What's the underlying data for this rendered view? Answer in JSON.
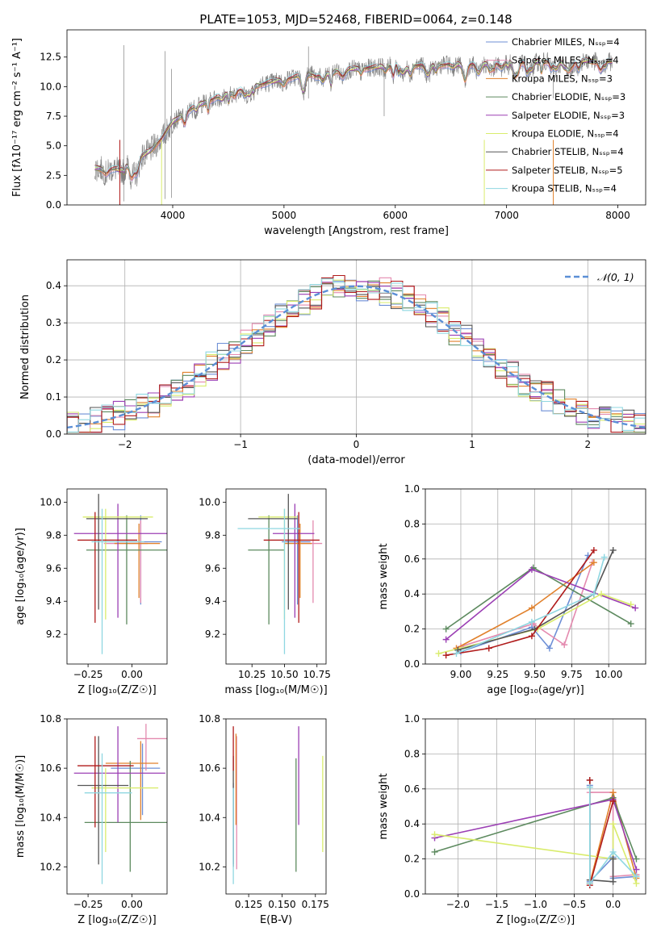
{
  "title": "PLATE=1053, MJD=52468, FIBERID=0064, z=0.148",
  "colors": {
    "Chabrier MILES": "#6d8fd6",
    "Salpeter MILES": "#e48aaf",
    "Kroupa MILES": "#e1812c",
    "Chabrier ELODIE": "#5d8a5f",
    "Salpeter ELODIE": "#9b3fb4",
    "Kroupa ELODIE": "#d9ec6c",
    "Chabrier STELIB": "#555555",
    "Salpeter STELIB": "#b01b1b",
    "Kroupa STELIB": "#8fd7e1",
    "data": "#808080",
    "normal": "#5b8fd6"
  },
  "chart_data": [
    {
      "id": "spectrum",
      "type": "line",
      "xlabel": "wavelength [Angstrom, rest frame]",
      "ylabel": "Flux [fλ10⁻¹⁷ erg cm⁻² s⁻¹ A⁻¹]",
      "xlim": [
        3050,
        8250
      ],
      "ylim": [
        0,
        14.8
      ],
      "xticks": [
        4000,
        5000,
        6000,
        7000,
        8000
      ],
      "yticks": [
        0.0,
        2.5,
        5.0,
        7.5,
        10.0,
        12.5
      ],
      "legend": "top-right",
      "legend_entries": [
        "Chabrier MILES, Nₛₛₚ=4",
        "Salpeter MILES, Nₛₛₚ=4",
        "Kroupa MILES, Nₛₛₚ=3",
        "Chabrier ELODIE, Nₛₛₚ=3",
        "Salpeter ELODIE, Nₛₛₚ=3",
        "Kroupa ELODIE, Nₛₛₚ=4",
        "Chabrier STELIB, Nₛₛₚ=4",
        "Salpeter STELIB, Nₛₛₚ=5",
        "Kroupa STELIB, Nₛₛₚ=4"
      ],
      "continuum": {
        "x": [
          3300,
          3500,
          3650,
          3800,
          3900,
          4000,
          4200,
          4400,
          4600,
          4800,
          5000,
          5200,
          5500,
          5800,
          6000,
          6300,
          6600,
          6800,
          7000,
          7300,
          7600,
          7900
        ],
        "y": [
          3.1,
          3.0,
          3.6,
          4.6,
          5.6,
          7.0,
          8.3,
          9.1,
          9.7,
          10.2,
          10.6,
          11.0,
          11.4,
          11.6,
          11.8,
          11.8,
          11.9,
          11.9,
          12.0,
          12.1,
          12.2,
          12.1
        ]
      }
    },
    {
      "id": "residuals",
      "type": "histogram",
      "xlabel": "(data-model)/error",
      "ylabel": "Normed distribution",
      "xlim": [
        -2.5,
        2.5
      ],
      "ylim": [
        0,
        0.47
      ],
      "xticks": [
        -2,
        -1,
        0,
        1,
        2
      ],
      "yticks": [
        0.0,
        0.1,
        0.2,
        0.3,
        0.4
      ],
      "legend": "top-right",
      "legend_label": "𝒩(0, 1)",
      "bin_width": 0.1
    },
    {
      "id": "age-vs-Z",
      "type": "scatter",
      "xlabel": "Z [log₁₀(Z/Z☉)]",
      "ylabel": "age  [log₁₀(age/yr)]",
      "xlim": [
        -0.37,
        0.2
      ],
      "ylim": [
        9.02,
        10.08
      ],
      "xticks": [
        -0.25,
        0.0
      ],
      "xticklabels": [
        "−0.25",
        "0.00"
      ],
      "yticks": [
        9.2,
        9.4,
        9.6,
        9.8,
        10.0
      ],
      "points": [
        {
          "model": "Chabrier MILES",
          "x": 0.05,
          "xerr": [
            0.14,
            0.12
          ],
          "y": 9.76,
          "yerr": [
            0.38,
            0.16
          ]
        },
        {
          "model": "Salpeter MILES",
          "x": 0.05,
          "xerr": [
            0.21,
            0.04
          ],
          "y": 9.75,
          "yerr": [
            0.36,
            0.14
          ]
        },
        {
          "model": "Kroupa MILES",
          "x": 0.04,
          "xerr": [
            0.14,
            0.12
          ],
          "y": 9.75,
          "yerr": [
            0.33,
            0.12
          ]
        },
        {
          "model": "Chabrier ELODIE",
          "x": -0.03,
          "xerr": [
            0.23,
            0.23
          ],
          "y": 9.71,
          "yerr": [
            0.45,
            0.21
          ]
        },
        {
          "model": "Salpeter ELODIE",
          "x": -0.08,
          "xerr": [
            0.25,
            0.28
          ],
          "y": 9.81,
          "yerr": [
            0.51,
            0.18
          ]
        },
        {
          "model": "Kroupa ELODIE",
          "x": -0.15,
          "xerr": [
            0.13,
            0.27
          ],
          "y": 9.91,
          "yerr": [
            0.62,
            0.05
          ]
        },
        {
          "model": "Chabrier STELIB",
          "x": -0.19,
          "xerr": [
            0.07,
            0.28
          ],
          "y": 9.9,
          "yerr": [
            0.55,
            0.15
          ]
        },
        {
          "model": "Salpeter STELIB",
          "x": -0.21,
          "xerr": [
            0.1,
            0.24
          ],
          "y": 9.77,
          "yerr": [
            0.5,
            0.17
          ]
        },
        {
          "model": "Kroupa STELIB",
          "x": -0.17,
          "xerr": [
            0.06,
            0.24
          ],
          "y": 9.76,
          "yerr": [
            0.68,
            0.2
          ]
        }
      ]
    },
    {
      "id": "age-vs-mass",
      "type": "scatter",
      "xlabel": "mass [log₁₀(M/M☉)]",
      "ylabel": "",
      "xlim": [
        10.05,
        10.82
      ],
      "ylim": [
        9.02,
        10.08
      ],
      "xticks": [
        10.25,
        10.5,
        10.75
      ],
      "xticklabels": [
        "10.25",
        "10.50",
        "10.75"
      ],
      "yticks": [
        9.2,
        9.4,
        9.6,
        9.8,
        10.0
      ],
      "points": [
        {
          "model": "Chabrier MILES",
          "x": 10.6,
          "xerr": [
            0.12,
            0.1
          ],
          "y": 9.76,
          "yerr": [
            0.38,
            0.16
          ]
        },
        {
          "model": "Salpeter MILES",
          "x": 10.72,
          "xerr": [
            0.09,
            0.07
          ],
          "y": 9.75,
          "yerr": [
            0.36,
            0.14
          ]
        },
        {
          "model": "Kroupa MILES",
          "x": 10.62,
          "xerr": [
            0.12,
            0.09
          ],
          "y": 9.75,
          "yerr": [
            0.33,
            0.12
          ]
        },
        {
          "model": "Chabrier ELODIE",
          "x": 10.38,
          "xerr": [
            0.16,
            0.12
          ],
          "y": 9.71,
          "yerr": [
            0.45,
            0.21
          ]
        },
        {
          "model": "Salpeter ELODIE",
          "x": 10.58,
          "xerr": [
            0.17,
            0.15
          ],
          "y": 9.81,
          "yerr": [
            0.51,
            0.18
          ]
        },
        {
          "model": "Kroupa ELODIE",
          "x": 10.5,
          "xerr": [
            0.2,
            0.1
          ],
          "y": 9.91,
          "yerr": [
            0.62,
            0.05
          ]
        },
        {
          "model": "Chabrier STELIB",
          "x": 10.53,
          "xerr": [
            0.31,
            0.07
          ],
          "y": 9.9,
          "yerr": [
            0.55,
            0.15
          ]
        },
        {
          "model": "Salpeter STELIB",
          "x": 10.61,
          "xerr": [
            0.27,
            0.16
          ],
          "y": 9.77,
          "yerr": [
            0.5,
            0.17
          ]
        },
        {
          "model": "Kroupa STELIB",
          "x": 10.5,
          "xerr": [
            0.36,
            0.12
          ],
          "y": 9.84,
          "yerr": [
            0.76,
            0.12
          ]
        }
      ]
    },
    {
      "id": "massweight-vs-age",
      "type": "line",
      "xlabel": "age  [log₁₀(age/yr)]",
      "ylabel": "mass weight",
      "xlim": [
        8.76,
        10.25
      ],
      "ylim": [
        0,
        1
      ],
      "xticks": [
        9.0,
        9.25,
        9.5,
        9.75,
        10.0
      ],
      "xticklabels": [
        "9.00",
        "9.25",
        "9.50",
        "9.75",
        "10.00"
      ],
      "yticks": [
        0.0,
        0.2,
        0.4,
        0.6,
        0.8,
        1.0
      ],
      "series": [
        {
          "model": "Chabrier MILES",
          "x": [
            9.0,
            9.48,
            9.6,
            9.86
          ],
          "y": [
            0.07,
            0.21,
            0.09,
            0.62
          ]
        },
        {
          "model": "Salpeter MILES",
          "x": [
            9.0,
            9.49,
            9.7,
            9.89
          ],
          "y": [
            0.1,
            0.23,
            0.11,
            0.58
          ]
        },
        {
          "model": "Kroupa MILES",
          "x": [
            8.97,
            9.48,
            9.9
          ],
          "y": [
            0.09,
            0.32,
            0.58
          ]
        },
        {
          "model": "Chabrier ELODIE",
          "x": [
            8.9,
            9.49,
            10.15
          ],
          "y": [
            0.2,
            0.55,
            0.23
          ]
        },
        {
          "model": "Salpeter ELODIE",
          "x": [
            8.9,
            9.48,
            10.18
          ],
          "y": [
            0.14,
            0.54,
            0.32
          ]
        },
        {
          "model": "Kroupa ELODIE",
          "x": [
            8.85,
            9.52,
            9.95,
            10.15
          ],
          "y": [
            0.06,
            0.2,
            0.4,
            0.34
          ]
        },
        {
          "model": "Chabrier STELIB",
          "x": [
            8.98,
            9.5,
            9.9,
            10.03
          ],
          "y": [
            0.08,
            0.2,
            0.4,
            0.65
          ]
        },
        {
          "model": "Salpeter STELIB",
          "x": [
            8.9,
            9.19,
            9.48,
            9.9
          ],
          "y": [
            0.05,
            0.09,
            0.16,
            0.65
          ]
        },
        {
          "model": "Kroupa STELIB",
          "x": [
            8.97,
            9.48,
            9.9,
            9.97
          ],
          "y": [
            0.06,
            0.24,
            0.4,
            0.61
          ]
        }
      ]
    },
    {
      "id": "mass-vs-Z",
      "type": "scatter",
      "xlabel": "Z [log₁₀(Z/Z☉)]",
      "ylabel": "mass [log₁₀(M/M☉)]",
      "xlim": [
        -0.37,
        0.2
      ],
      "ylim": [
        10.09,
        10.8
      ],
      "xticks": [
        -0.25,
        0.0
      ],
      "xticklabels": [
        "−0.25",
        "0.00"
      ],
      "yticks": [
        10.2,
        10.4,
        10.6,
        10.8
      ],
      "points": [
        {
          "model": "Chabrier MILES",
          "x": 0.06,
          "xerr": [
            0.18,
            0.1
          ],
          "y": 10.6,
          "yerr": [
            0.19,
            0.1
          ]
        },
        {
          "model": "Salpeter MILES",
          "x": 0.08,
          "xerr": [
            0.05,
            0.12
          ],
          "y": 10.72,
          "yerr": [
            0.13,
            0.06
          ]
        },
        {
          "model": "Kroupa MILES",
          "x": 0.05,
          "xerr": [
            0.2,
            0.1
          ],
          "y": 10.62,
          "yerr": [
            0.23,
            0.09
          ]
        },
        {
          "model": "Chabrier ELODIE",
          "x": -0.01,
          "xerr": [
            0.26,
            0.21
          ],
          "y": 10.38,
          "yerr": [
            0.2,
            0.25
          ]
        },
        {
          "model": "Salpeter ELODIE",
          "x": -0.08,
          "xerr": [
            0.25,
            0.27
          ],
          "y": 10.58,
          "yerr": [
            0.2,
            0.19
          ]
        },
        {
          "model": "Kroupa ELODIE",
          "x": -0.15,
          "xerr": [
            0.08,
            0.3
          ],
          "y": 10.52,
          "yerr": [
            0.26,
            0.08
          ]
        },
        {
          "model": "Chabrier STELIB",
          "x": -0.19,
          "xerr": [
            0.12,
            0.17
          ],
          "y": 10.53,
          "yerr": [
            0.32,
            0.2
          ]
        },
        {
          "model": "Salpeter STELIB",
          "x": -0.21,
          "xerr": [
            0.1,
            0.22
          ],
          "y": 10.61,
          "yerr": [
            0.25,
            0.12
          ]
        },
        {
          "model": "Kroupa STELIB",
          "x": -0.17,
          "xerr": [
            0.1,
            0.17
          ],
          "y": 10.5,
          "yerr": [
            0.37,
            0.16
          ]
        }
      ]
    },
    {
      "id": "mass-vs-ebv",
      "type": "scatter",
      "xlabel": "E(B-V)",
      "ylabel": "",
      "xlim": [
        0.108,
        0.183
      ],
      "ylim": [
        10.09,
        10.8
      ],
      "xticks": [
        0.125,
        0.15,
        0.175
      ],
      "xticklabels": [
        "0.125",
        "0.150",
        "0.175"
      ],
      "yticks": [
        10.2,
        10.4,
        10.6,
        10.8
      ],
      "points": [
        {
          "model": "Chabrier MILES",
          "x": 0.1135,
          "y": 10.36,
          "yerr": [
            0.15,
            0.18
          ]
        },
        {
          "model": "Salpeter MILES",
          "x": 0.116,
          "y": 10.56,
          "yerr": [
            0.37,
            0.17
          ]
        },
        {
          "model": "Kroupa MILES",
          "x": 0.1155,
          "y": 10.55,
          "yerr": [
            0.18,
            0.19
          ]
        },
        {
          "model": "Chabrier ELODIE",
          "x": 0.1605,
          "y": 10.41,
          "yerr": [
            0.23,
            0.23
          ]
        },
        {
          "model": "Salpeter ELODIE",
          "x": 0.1625,
          "y": 10.57,
          "yerr": [
            0.2,
            0.2
          ]
        },
        {
          "model": "Kroupa ELODIE",
          "x": 0.1805,
          "y": 10.46,
          "yerr": [
            0.2,
            0.19
          ]
        },
        {
          "model": "Chabrier STELIB",
          "x": 0.1135,
          "y": 10.5,
          "yerr": [
            0.3,
            0.15
          ]
        },
        {
          "model": "Salpeter STELIB",
          "x": 0.1135,
          "y": 10.72,
          "yerr": [
            0.13,
            0.05
          ]
        },
        {
          "model": "Kroupa STELIB",
          "x": 0.1135,
          "y": 10.34,
          "yerr": [
            0.21,
            0.18
          ]
        }
      ]
    },
    {
      "id": "massweight-vs-Z",
      "type": "line",
      "xlabel": "Z [log₁₀(Z/Z☉)]",
      "ylabel": "mass weight",
      "xlim": [
        -2.42,
        0.42
      ],
      "ylim": [
        0,
        1
      ],
      "xticks": [
        -2.0,
        -1.5,
        -1.0,
        -0.5,
        0.0
      ],
      "xticklabels": [
        "−2.0",
        "−1.5",
        "−1.0",
        "−0.5",
        "0.0"
      ],
      "yticks": [
        0.0,
        0.2,
        0.4,
        0.6,
        0.8,
        1.0
      ],
      "series": [
        {
          "model": "Chabrier MILES",
          "x": [
            -0.3,
            -0.3,
            0.0,
            0.0,
            0.3
          ],
          "y": [
            0.62,
            0.07,
            0.21,
            0.09,
            0.1
          ]
        },
        {
          "model": "Salpeter MILES",
          "x": [
            -0.3,
            0.0,
            0.0,
            0.3
          ],
          "y": [
            0.58,
            0.58,
            0.1,
            0.11
          ]
        },
        {
          "model": "Kroupa MILES",
          "x": [
            -0.3,
            0.0,
            0.3
          ],
          "y": [
            0.06,
            0.58,
            0.09
          ]
        },
        {
          "model": "Chabrier ELODIE",
          "x": [
            -2.3,
            0.0,
            0.3
          ],
          "y": [
            0.24,
            0.55,
            0.2
          ]
        },
        {
          "model": "Salpeter ELODIE",
          "x": [
            -2.3,
            0.0,
            0.3
          ],
          "y": [
            0.32,
            0.54,
            0.14
          ]
        },
        {
          "model": "Kroupa ELODIE",
          "x": [
            -2.3,
            0.0,
            0.0,
            0.3
          ],
          "y": [
            0.34,
            0.2,
            0.4,
            0.06
          ]
        },
        {
          "model": "Chabrier STELIB",
          "x": [
            -0.3,
            -0.3,
            0.0,
            0.0
          ],
          "y": [
            0.65,
            0.08,
            0.07,
            0.2
          ]
        },
        {
          "model": "Salpeter STELIB",
          "x": [
            -0.3,
            -0.3,
            0.0
          ],
          "y": [
            0.65,
            0.05,
            0.53
          ]
        },
        {
          "model": "Kroupa STELIB",
          "x": [
            -0.3,
            -0.3,
            0.0,
            0.3
          ],
          "y": [
            0.61,
            0.06,
            0.24,
            0.1
          ]
        }
      ]
    }
  ]
}
